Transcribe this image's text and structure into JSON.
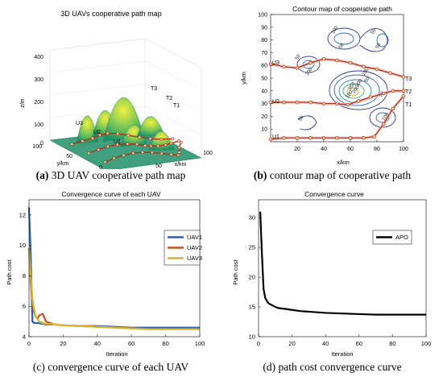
{
  "captions": {
    "a": {
      "tag": "(a)",
      "text": "3D UAV cooperative path map"
    },
    "b": {
      "tag": "(b)",
      "text": "contour map of cooperative path"
    },
    "c": {
      "tag": "(c)",
      "text": "convergence curve of each UAV"
    },
    "d": {
      "tag": "(d)",
      "text": "path cost convergence curve"
    }
  },
  "chart_data": [
    {
      "type": "surface",
      "title": "3D UAVs cooperative path map",
      "zlabel": "z/m",
      "ylabel": "y/km",
      "xlabel": "x/km",
      "zticks": [
        "0",
        "100",
        "200",
        "300",
        "400"
      ],
      "yticks": [
        "0",
        "50",
        "100"
      ],
      "xticks": [
        "0",
        "50",
        "100"
      ],
      "path_labels": [
        "U1",
        "U2",
        "U3",
        "T1",
        "T2",
        "T3"
      ],
      "colors": {
        "surface_low": "#1f8f6a",
        "surface_high": "#f2f040",
        "path": "#b03018"
      }
    },
    {
      "type": "contour",
      "title": "Contour map of cooperative path",
      "xlabel": "x/km",
      "ylabel": "y/km",
      "xlim": [
        0,
        100
      ],
      "ylim": [
        0,
        100
      ],
      "xticks": [
        20,
        40,
        60,
        80,
        100
      ],
      "yticks": [
        10,
        20,
        30,
        40,
        50,
        60,
        70,
        80,
        90,
        100
      ],
      "contour_labels": [
        "100",
        "50",
        "50",
        "100",
        "50",
        "50",
        "100",
        "50",
        "100",
        "200",
        "250",
        "300",
        "50",
        "100",
        "50"
      ],
      "paths": [
        {
          "start": "U1",
          "end": "T1",
          "points": [
            [
              0,
              2
            ],
            [
              10,
              3
            ],
            [
              20,
              3
            ],
            [
              30,
              3
            ],
            [
              40,
              3
            ],
            [
              50,
              3
            ],
            [
              60,
              3
            ],
            [
              70,
              3
            ],
            [
              78,
              4
            ],
            [
              85,
              14
            ],
            [
              92,
              26
            ],
            [
              100,
              36
            ]
          ]
        },
        {
          "start": "U2",
          "end": "T2",
          "points": [
            [
              0,
              31
            ],
            [
              10,
              31
            ],
            [
              20,
              31
            ],
            [
              30,
              31
            ],
            [
              40,
              30
            ],
            [
              50,
              30
            ],
            [
              58,
              29
            ],
            [
              66,
              32
            ],
            [
              75,
              35
            ],
            [
              85,
              38
            ],
            [
              92,
              40
            ],
            [
              100,
              40
            ]
          ]
        },
        {
          "start": "U3",
          "end": "T3",
          "points": [
            [
              0,
              61
            ],
            [
              10,
              59
            ],
            [
              20,
              58
            ],
            [
              30,
              62
            ],
            [
              40,
              65
            ],
            [
              50,
              64
            ],
            [
              60,
              62
            ],
            [
              70,
              59
            ],
            [
              80,
              57
            ],
            [
              90,
              54
            ],
            [
              100,
              51
            ]
          ]
        }
      ]
    },
    {
      "type": "line",
      "title": "Convergence curve of each UAV",
      "xlabel": "Iteration",
      "ylabel": "Path cost",
      "xlim": [
        0,
        100
      ],
      "ylim": [
        4,
        13
      ],
      "xticks": [
        0,
        20,
        40,
        60,
        80,
        100
      ],
      "yticks": [
        4,
        6,
        8,
        10,
        12
      ],
      "series": [
        {
          "name": "UAV1",
          "color": "#2a5fb8",
          "x": [
            0,
            1,
            2,
            3,
            5,
            8,
            10,
            15,
            20,
            30,
            40,
            50,
            60,
            70,
            80,
            90,
            100
          ],
          "y": [
            12.5,
            9.5,
            5.0,
            4.9,
            4.9,
            4.85,
            4.8,
            4.8,
            4.75,
            4.7,
            4.7,
            4.65,
            4.6,
            4.6,
            4.6,
            4.6,
            4.6
          ]
        },
        {
          "name": "UAV2",
          "color": "#c0541e",
          "x": [
            0,
            1,
            2,
            3,
            4,
            5,
            6,
            8,
            10,
            15,
            20,
            30,
            40,
            50,
            60,
            70,
            80,
            90,
            100
          ],
          "y": [
            9.8,
            7.5,
            6.2,
            5.6,
            5.3,
            5.2,
            5.4,
            5.5,
            5.0,
            4.8,
            4.75,
            4.7,
            4.65,
            4.6,
            4.55,
            4.5,
            4.5,
            4.5,
            4.5
          ]
        },
        {
          "name": "UAV3",
          "color": "#d9b52a",
          "x": [
            0,
            1,
            2,
            3,
            4,
            6,
            8,
            10,
            15,
            20,
            30,
            40,
            50,
            60,
            70,
            80,
            90,
            100
          ],
          "y": [
            9.7,
            8.0,
            6.5,
            5.8,
            5.3,
            5.0,
            4.9,
            4.85,
            4.8,
            4.75,
            4.7,
            4.65,
            4.6,
            4.55,
            4.5,
            4.5,
            4.5,
            4.5
          ]
        }
      ],
      "legend": "top-right"
    },
    {
      "type": "line",
      "title": "Convergence curve",
      "xlabel": "Iteration",
      "ylabel": "Path cost",
      "xlim": [
        0,
        100
      ],
      "ylim": [
        10,
        33
      ],
      "xticks": [
        0,
        20,
        40,
        60,
        80,
        100
      ],
      "yticks": [
        10,
        15,
        20,
        25,
        30
      ],
      "series": [
        {
          "name": "APO",
          "color": "#000000",
          "x": [
            1,
            2,
            3,
            4,
            5,
            6,
            8,
            10,
            12,
            15,
            20,
            25,
            30,
            40,
            50,
            60,
            70,
            80,
            90,
            100
          ],
          "y": [
            31.0,
            24.0,
            18.0,
            16.5,
            16.0,
            15.6,
            15.3,
            15.0,
            14.8,
            14.7,
            14.5,
            14.3,
            14.2,
            14.0,
            13.9,
            13.8,
            13.7,
            13.7,
            13.7,
            13.7
          ]
        }
      ],
      "legend": "top-right"
    }
  ]
}
